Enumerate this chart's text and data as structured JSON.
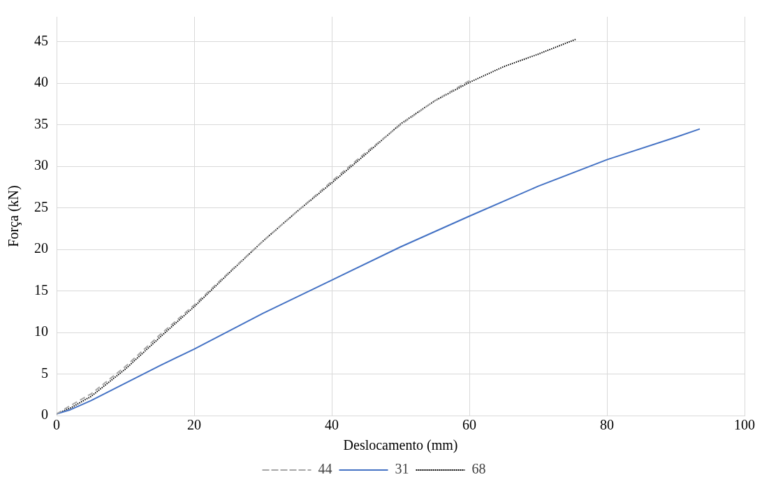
{
  "chart_data": {
    "type": "line",
    "xlabel": "Deslocamento (mm)",
    "ylabel": "Força (kN)",
    "xlim": [
      0,
      100
    ],
    "xticks": [
      0,
      20,
      40,
      60,
      80,
      100
    ],
    "ylim": [
      0,
      48
    ],
    "yticks": [
      0,
      5,
      10,
      15,
      20,
      25,
      30,
      35,
      40,
      45
    ],
    "grid": true,
    "legend": "bottom",
    "marker": "none",
    "series": [
      {
        "name": "44",
        "color": "#a5a5a5",
        "line_style": "dashed",
        "x": [
          0,
          2,
          5,
          10,
          15,
          20,
          25,
          30,
          35,
          40,
          45,
          50,
          55,
          60
        ],
        "values": [
          0.2,
          1.2,
          2.6,
          5.9,
          9.7,
          13.3,
          17.2,
          21.0,
          24.6,
          28.2,
          31.7,
          35.0,
          37.9,
          40.3
        ]
      },
      {
        "name": "31",
        "color": "#4472c4",
        "line_style": "solid",
        "x": [
          0,
          2,
          5,
          10,
          15,
          20,
          30,
          40,
          50,
          60,
          70,
          80,
          90,
          93.5
        ],
        "values": [
          0.2,
          0.7,
          1.8,
          3.9,
          6.0,
          8.0,
          12.3,
          16.3,
          20.3,
          24.0,
          27.6,
          30.8,
          33.5,
          34.5
        ]
      },
      {
        "name": "68",
        "color": "#000000",
        "line_style": "dotted",
        "x": [
          0,
          2,
          5,
          10,
          15,
          20,
          25,
          30,
          35,
          40,
          45,
          50,
          55,
          60,
          65,
          70,
          75.5
        ],
        "values": [
          0.2,
          0.9,
          2.3,
          5.6,
          9.4,
          13.1,
          17.1,
          21.0,
          24.6,
          28.0,
          31.5,
          35.1,
          37.9,
          40.1,
          42.0,
          43.5,
          45.3
        ]
      }
    ]
  }
}
